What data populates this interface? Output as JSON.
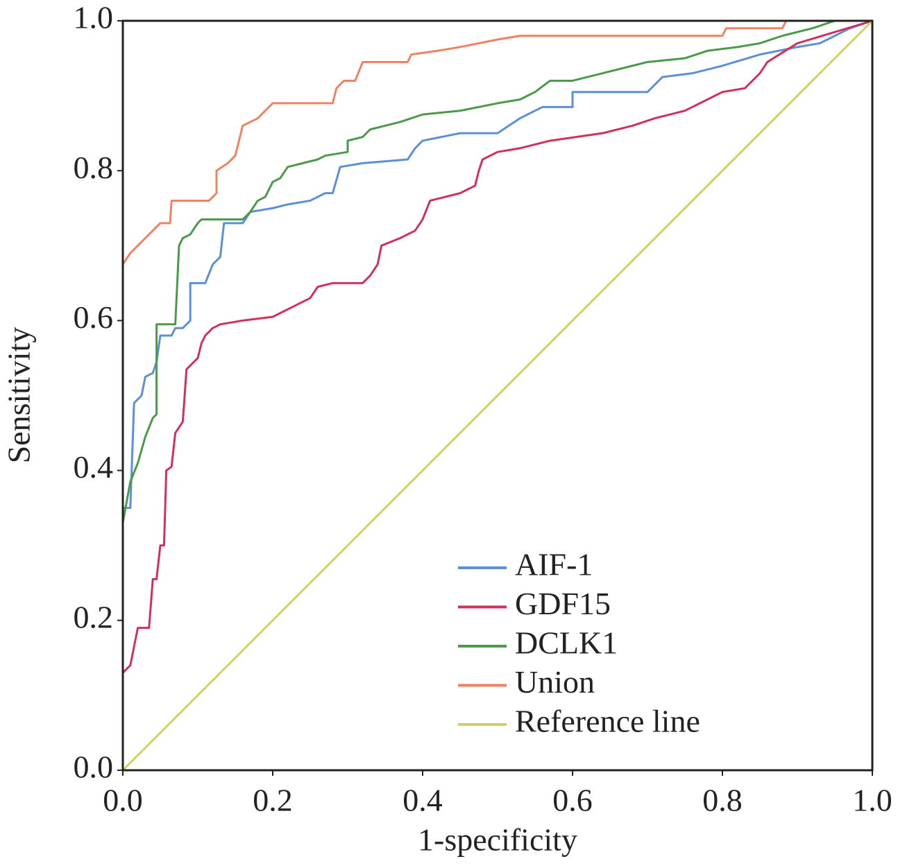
{
  "chart_data": {
    "type": "line",
    "xlabel": "1-specificity",
    "ylabel": "Sensitivity",
    "xlim": [
      0,
      1
    ],
    "ylim": [
      0,
      1
    ],
    "xticks": [
      {
        "value": 0,
        "label": "0.0"
      },
      0.2,
      0.4,
      0.6,
      0.8,
      {
        "value": 1,
        "label": "1.0"
      }
    ],
    "yticks": [
      {
        "value": 0,
        "label": "0.0"
      },
      0.2,
      0.4,
      0.6,
      0.8,
      {
        "value": 1,
        "label": "1.0"
      }
    ],
    "legend": "lower right",
    "series": [
      {
        "name": "AIF-1",
        "color": "#5b8fd6",
        "x": [
          0,
          0.01,
          0.015,
          0.025,
          0.03,
          0.04,
          0.045,
          0.05,
          0.065,
          0.07,
          0.08,
          0.09,
          0.09,
          0.11,
          0.12,
          0.13,
          0.135,
          0.16,
          0.17,
          0.2,
          0.22,
          0.25,
          0.27,
          0.28,
          0.29,
          0.32,
          0.38,
          0.39,
          0.4,
          0.45,
          0.5,
          0.53,
          0.56,
          0.6,
          0.6,
          0.7,
          0.72,
          0.76,
          0.8,
          0.85,
          0.9,
          0.93,
          0.95,
          0.97,
          1.0
        ],
        "values": [
          0.35,
          0.35,
          0.49,
          0.5,
          0.525,
          0.53,
          0.545,
          0.58,
          0.58,
          0.59,
          0.59,
          0.6,
          0.65,
          0.65,
          0.675,
          0.685,
          0.73,
          0.73,
          0.745,
          0.75,
          0.755,
          0.76,
          0.77,
          0.77,
          0.805,
          0.81,
          0.815,
          0.83,
          0.84,
          0.85,
          0.85,
          0.87,
          0.885,
          0.885,
          0.905,
          0.905,
          0.925,
          0.93,
          0.94,
          0.955,
          0.965,
          0.97,
          0.98,
          0.99,
          1.0
        ]
      },
      {
        "name": "GDF15",
        "color": "#d0305a",
        "x": [
          0,
          0.01,
          0.02,
          0.035,
          0.04,
          0.045,
          0.05,
          0.055,
          0.058,
          0.065,
          0.07,
          0.08,
          0.085,
          0.09,
          0.1,
          0.105,
          0.11,
          0.12,
          0.13,
          0.16,
          0.2,
          0.22,
          0.25,
          0.26,
          0.28,
          0.32,
          0.33,
          0.34,
          0.345,
          0.37,
          0.39,
          0.4,
          0.41,
          0.43,
          0.45,
          0.47,
          0.475,
          0.48,
          0.5,
          0.53,
          0.55,
          0.57,
          0.64,
          0.68,
          0.71,
          0.75,
          0.78,
          0.8,
          0.83,
          0.85,
          0.86,
          0.9,
          0.95,
          1.0
        ],
        "values": [
          0.13,
          0.14,
          0.19,
          0.19,
          0.255,
          0.255,
          0.3,
          0.3,
          0.4,
          0.405,
          0.45,
          0.465,
          0.535,
          0.54,
          0.55,
          0.57,
          0.58,
          0.59,
          0.595,
          0.6,
          0.605,
          0.615,
          0.63,
          0.645,
          0.65,
          0.65,
          0.66,
          0.675,
          0.7,
          0.71,
          0.72,
          0.735,
          0.76,
          0.765,
          0.77,
          0.78,
          0.8,
          0.815,
          0.825,
          0.83,
          0.835,
          0.84,
          0.85,
          0.86,
          0.87,
          0.88,
          0.895,
          0.905,
          0.91,
          0.93,
          0.945,
          0.97,
          0.985,
          1.0
        ]
      },
      {
        "name": "DCLK1",
        "color": "#4a9a4a",
        "x": [
          0,
          0.01,
          0.02,
          0.03,
          0.04,
          0.045,
          0.045,
          0.07,
          0.075,
          0.08,
          0.09,
          0.1,
          0.105,
          0.16,
          0.17,
          0.18,
          0.19,
          0.2,
          0.21,
          0.22,
          0.24,
          0.26,
          0.27,
          0.3,
          0.3,
          0.32,
          0.33,
          0.35,
          0.37,
          0.4,
          0.45,
          0.5,
          0.53,
          0.55,
          0.57,
          0.6,
          0.64,
          0.68,
          0.7,
          0.75,
          0.78,
          0.82,
          0.85,
          0.88,
          0.92,
          0.95,
          1.0
        ],
        "values": [
          0.33,
          0.385,
          0.41,
          0.445,
          0.47,
          0.475,
          0.595,
          0.595,
          0.7,
          0.71,
          0.715,
          0.73,
          0.735,
          0.735,
          0.745,
          0.76,
          0.765,
          0.785,
          0.79,
          0.805,
          0.81,
          0.815,
          0.82,
          0.825,
          0.84,
          0.845,
          0.855,
          0.86,
          0.865,
          0.875,
          0.88,
          0.89,
          0.895,
          0.905,
          0.92,
          0.92,
          0.93,
          0.94,
          0.945,
          0.95,
          0.96,
          0.965,
          0.97,
          0.98,
          0.99,
          1.0,
          1.0
        ]
      },
      {
        "name": "Union",
        "color": "#f08262",
        "x": [
          0,
          0.01,
          0.02,
          0.03,
          0.04,
          0.05,
          0.063,
          0.065,
          0.115,
          0.125,
          0.125,
          0.14,
          0.15,
          0.155,
          0.16,
          0.18,
          0.19,
          0.2,
          0.28,
          0.285,
          0.295,
          0.31,
          0.32,
          0.38,
          0.385,
          0.42,
          0.45,
          0.5,
          0.53,
          0.8,
          0.805,
          0.88,
          0.885,
          1.0
        ],
        "values": [
          0.675,
          0.69,
          0.7,
          0.71,
          0.72,
          0.73,
          0.73,
          0.76,
          0.76,
          0.77,
          0.8,
          0.81,
          0.82,
          0.84,
          0.86,
          0.87,
          0.88,
          0.89,
          0.89,
          0.91,
          0.92,
          0.92,
          0.945,
          0.945,
          0.955,
          0.96,
          0.965,
          0.975,
          0.98,
          0.98,
          0.99,
          0.99,
          1.0,
          1.0
        ]
      },
      {
        "name": "Reference line",
        "color": "#d4d060",
        "x": [
          0,
          1
        ],
        "values": [
          0,
          1
        ]
      }
    ]
  }
}
